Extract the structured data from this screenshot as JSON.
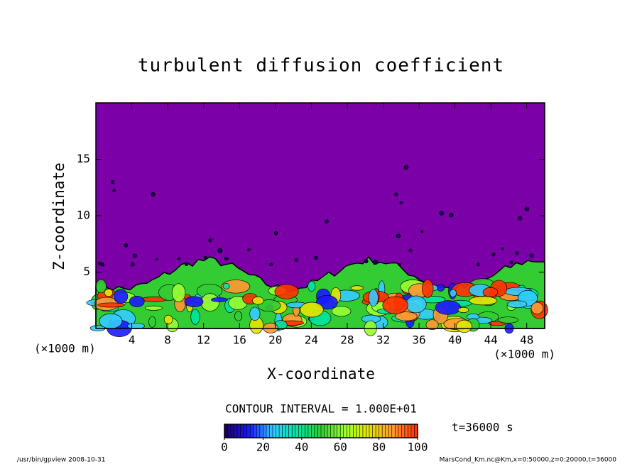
{
  "chart_data": {
    "type": "contour",
    "title": "turbulent diffusion coefficient",
    "xlabel": "X-coordinate",
    "ylabel": "Z-coordinate",
    "x_unit": "(×1000 m)",
    "xlim": [
      0,
      50
    ],
    "xticks": [
      4,
      8,
      12,
      16,
      20,
      24,
      28,
      32,
      36,
      40,
      44,
      48
    ],
    "ylim": [
      0,
      20
    ],
    "yticks": [
      5,
      10,
      15
    ],
    "background_color": "#7b00a8",
    "colormap": [
      "#1a0066",
      "#1a1aff",
      "#33ccff",
      "#00e6a0",
      "#33cc33",
      "#99ff33",
      "#e6e600",
      "#ff9933",
      "#ff3300"
    ],
    "clim": [
      0,
      100
    ],
    "cticks": [
      0,
      20,
      40,
      60,
      80,
      100
    ],
    "contour_interval": "CONTOUR INTERVAL = 1.000E+01",
    "time_label": "t=36000 s",
    "footer_left": "/usr/bin/gpview  2008-10-31",
    "footer_right": "MarsCond_Km.nc@Km,x=0:50000,z=0:20000,t=36000"
  }
}
